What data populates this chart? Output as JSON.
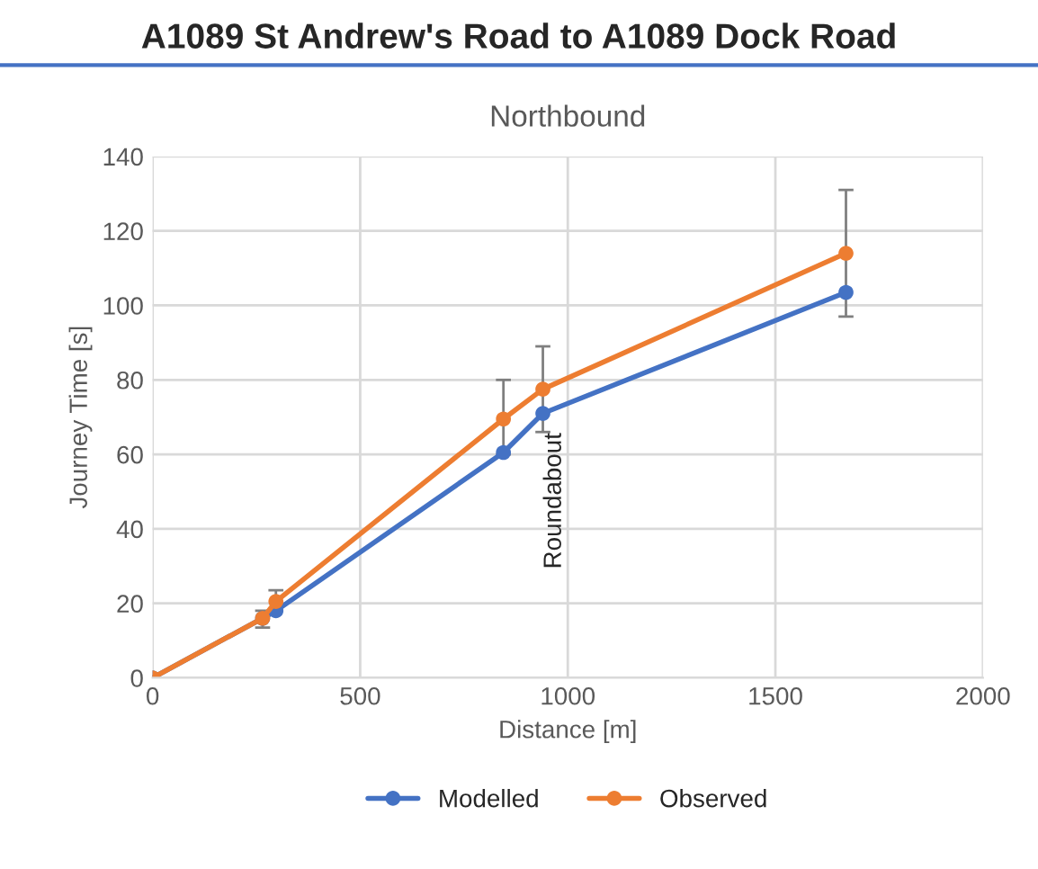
{
  "chart_data": {
    "type": "line",
    "title": "A1089 St Andrew's Road to A1089 Dock Road",
    "subtitle": "Northbound",
    "xlabel": "Distance [m]",
    "ylabel": "Journey Time [s]",
    "xlim": [
      0,
      2000
    ],
    "xticks": [
      0,
      500,
      1000,
      1500,
      2000
    ],
    "ylim": [
      0,
      140
    ],
    "yticks": [
      0,
      20,
      40,
      60,
      80,
      100,
      120,
      140
    ],
    "grid": true,
    "legend": "bottom",
    "marker": "circle",
    "line_style": "solid",
    "annotations": [
      "Roundabout"
    ],
    "series": [
      {
        "name": "Modelled",
        "color": "#4472c4",
        "x": [
          0,
          265,
          297,
          845,
          940,
          1670
        ],
        "values": [
          0,
          16,
          18,
          60.5,
          71,
          103.5
        ]
      },
      {
        "name": "Observed",
        "color": "#ed7d31",
        "x": [
          0,
          265,
          297,
          845,
          940,
          1670
        ],
        "values": [
          0,
          16,
          20.5,
          69.5,
          77.5,
          114
        ],
        "errors": [
          null,
          [
            13.5,
            18
          ],
          [
            18,
            23.5
          ],
          [
            60,
            80
          ],
          [
            66,
            89
          ],
          [
            97,
            131
          ]
        ]
      }
    ]
  }
}
